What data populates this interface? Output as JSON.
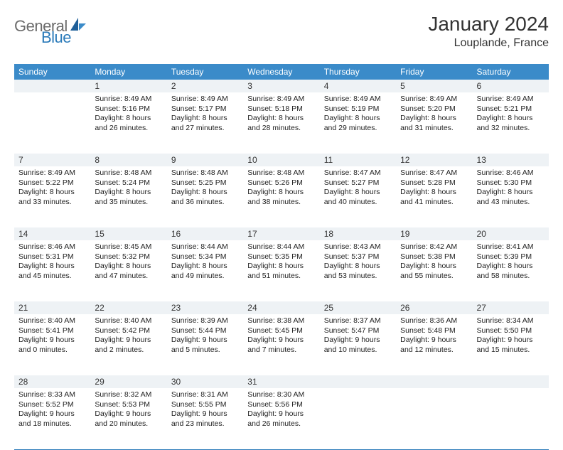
{
  "logo": {
    "part1": "General",
    "part2": "Blue"
  },
  "title": "January 2024",
  "location": "Louplande, France",
  "colors": {
    "header_bg": "#3b8bc9",
    "header_text": "#ffffff",
    "daynum_bg": "#eef2f5",
    "border": "#2a7ab9",
    "logo_gray": "#6b6b6b",
    "logo_blue": "#2a7ab9"
  },
  "dow": [
    "Sunday",
    "Monday",
    "Tuesday",
    "Wednesday",
    "Thursday",
    "Friday",
    "Saturday"
  ],
  "weeks": [
    [
      {
        "n": "",
        "sr": "",
        "ss": "",
        "dl1": "",
        "dl2": ""
      },
      {
        "n": "1",
        "sr": "Sunrise: 8:49 AM",
        "ss": "Sunset: 5:16 PM",
        "dl1": "Daylight: 8 hours",
        "dl2": "and 26 minutes."
      },
      {
        "n": "2",
        "sr": "Sunrise: 8:49 AM",
        "ss": "Sunset: 5:17 PM",
        "dl1": "Daylight: 8 hours",
        "dl2": "and 27 minutes."
      },
      {
        "n": "3",
        "sr": "Sunrise: 8:49 AM",
        "ss": "Sunset: 5:18 PM",
        "dl1": "Daylight: 8 hours",
        "dl2": "and 28 minutes."
      },
      {
        "n": "4",
        "sr": "Sunrise: 8:49 AM",
        "ss": "Sunset: 5:19 PM",
        "dl1": "Daylight: 8 hours",
        "dl2": "and 29 minutes."
      },
      {
        "n": "5",
        "sr": "Sunrise: 8:49 AM",
        "ss": "Sunset: 5:20 PM",
        "dl1": "Daylight: 8 hours",
        "dl2": "and 31 minutes."
      },
      {
        "n": "6",
        "sr": "Sunrise: 8:49 AM",
        "ss": "Sunset: 5:21 PM",
        "dl1": "Daylight: 8 hours",
        "dl2": "and 32 minutes."
      }
    ],
    [
      {
        "n": "7",
        "sr": "Sunrise: 8:49 AM",
        "ss": "Sunset: 5:22 PM",
        "dl1": "Daylight: 8 hours",
        "dl2": "and 33 minutes."
      },
      {
        "n": "8",
        "sr": "Sunrise: 8:48 AM",
        "ss": "Sunset: 5:24 PM",
        "dl1": "Daylight: 8 hours",
        "dl2": "and 35 minutes."
      },
      {
        "n": "9",
        "sr": "Sunrise: 8:48 AM",
        "ss": "Sunset: 5:25 PM",
        "dl1": "Daylight: 8 hours",
        "dl2": "and 36 minutes."
      },
      {
        "n": "10",
        "sr": "Sunrise: 8:48 AM",
        "ss": "Sunset: 5:26 PM",
        "dl1": "Daylight: 8 hours",
        "dl2": "and 38 minutes."
      },
      {
        "n": "11",
        "sr": "Sunrise: 8:47 AM",
        "ss": "Sunset: 5:27 PM",
        "dl1": "Daylight: 8 hours",
        "dl2": "and 40 minutes."
      },
      {
        "n": "12",
        "sr": "Sunrise: 8:47 AM",
        "ss": "Sunset: 5:28 PM",
        "dl1": "Daylight: 8 hours",
        "dl2": "and 41 minutes."
      },
      {
        "n": "13",
        "sr": "Sunrise: 8:46 AM",
        "ss": "Sunset: 5:30 PM",
        "dl1": "Daylight: 8 hours",
        "dl2": "and 43 minutes."
      }
    ],
    [
      {
        "n": "14",
        "sr": "Sunrise: 8:46 AM",
        "ss": "Sunset: 5:31 PM",
        "dl1": "Daylight: 8 hours",
        "dl2": "and 45 minutes."
      },
      {
        "n": "15",
        "sr": "Sunrise: 8:45 AM",
        "ss": "Sunset: 5:32 PM",
        "dl1": "Daylight: 8 hours",
        "dl2": "and 47 minutes."
      },
      {
        "n": "16",
        "sr": "Sunrise: 8:44 AM",
        "ss": "Sunset: 5:34 PM",
        "dl1": "Daylight: 8 hours",
        "dl2": "and 49 minutes."
      },
      {
        "n": "17",
        "sr": "Sunrise: 8:44 AM",
        "ss": "Sunset: 5:35 PM",
        "dl1": "Daylight: 8 hours",
        "dl2": "and 51 minutes."
      },
      {
        "n": "18",
        "sr": "Sunrise: 8:43 AM",
        "ss": "Sunset: 5:37 PM",
        "dl1": "Daylight: 8 hours",
        "dl2": "and 53 minutes."
      },
      {
        "n": "19",
        "sr": "Sunrise: 8:42 AM",
        "ss": "Sunset: 5:38 PM",
        "dl1": "Daylight: 8 hours",
        "dl2": "and 55 minutes."
      },
      {
        "n": "20",
        "sr": "Sunrise: 8:41 AM",
        "ss": "Sunset: 5:39 PM",
        "dl1": "Daylight: 8 hours",
        "dl2": "and 58 minutes."
      }
    ],
    [
      {
        "n": "21",
        "sr": "Sunrise: 8:40 AM",
        "ss": "Sunset: 5:41 PM",
        "dl1": "Daylight: 9 hours",
        "dl2": "and 0 minutes."
      },
      {
        "n": "22",
        "sr": "Sunrise: 8:40 AM",
        "ss": "Sunset: 5:42 PM",
        "dl1": "Daylight: 9 hours",
        "dl2": "and 2 minutes."
      },
      {
        "n": "23",
        "sr": "Sunrise: 8:39 AM",
        "ss": "Sunset: 5:44 PM",
        "dl1": "Daylight: 9 hours",
        "dl2": "and 5 minutes."
      },
      {
        "n": "24",
        "sr": "Sunrise: 8:38 AM",
        "ss": "Sunset: 5:45 PM",
        "dl1": "Daylight: 9 hours",
        "dl2": "and 7 minutes."
      },
      {
        "n": "25",
        "sr": "Sunrise: 8:37 AM",
        "ss": "Sunset: 5:47 PM",
        "dl1": "Daylight: 9 hours",
        "dl2": "and 10 minutes."
      },
      {
        "n": "26",
        "sr": "Sunrise: 8:36 AM",
        "ss": "Sunset: 5:48 PM",
        "dl1": "Daylight: 9 hours",
        "dl2": "and 12 minutes."
      },
      {
        "n": "27",
        "sr": "Sunrise: 8:34 AM",
        "ss": "Sunset: 5:50 PM",
        "dl1": "Daylight: 9 hours",
        "dl2": "and 15 minutes."
      }
    ],
    [
      {
        "n": "28",
        "sr": "Sunrise: 8:33 AM",
        "ss": "Sunset: 5:52 PM",
        "dl1": "Daylight: 9 hours",
        "dl2": "and 18 minutes."
      },
      {
        "n": "29",
        "sr": "Sunrise: 8:32 AM",
        "ss": "Sunset: 5:53 PM",
        "dl1": "Daylight: 9 hours",
        "dl2": "and 20 minutes."
      },
      {
        "n": "30",
        "sr": "Sunrise: 8:31 AM",
        "ss": "Sunset: 5:55 PM",
        "dl1": "Daylight: 9 hours",
        "dl2": "and 23 minutes."
      },
      {
        "n": "31",
        "sr": "Sunrise: 8:30 AM",
        "ss": "Sunset: 5:56 PM",
        "dl1": "Daylight: 9 hours",
        "dl2": "and 26 minutes."
      },
      {
        "n": "",
        "sr": "",
        "ss": "",
        "dl1": "",
        "dl2": ""
      },
      {
        "n": "",
        "sr": "",
        "ss": "",
        "dl1": "",
        "dl2": ""
      },
      {
        "n": "",
        "sr": "",
        "ss": "",
        "dl1": "",
        "dl2": ""
      }
    ]
  ]
}
